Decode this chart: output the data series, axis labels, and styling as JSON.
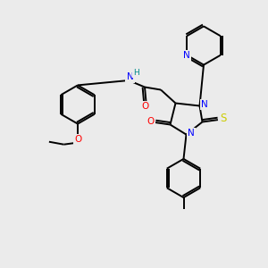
{
  "bg_color": "#ebebeb",
  "atom_colors": {
    "N": "#0000ff",
    "O": "#ff0000",
    "S": "#cccc00",
    "C": "#000000",
    "H": "#008b8b"
  },
  "lw": 1.4,
  "fontsize": 7.5
}
